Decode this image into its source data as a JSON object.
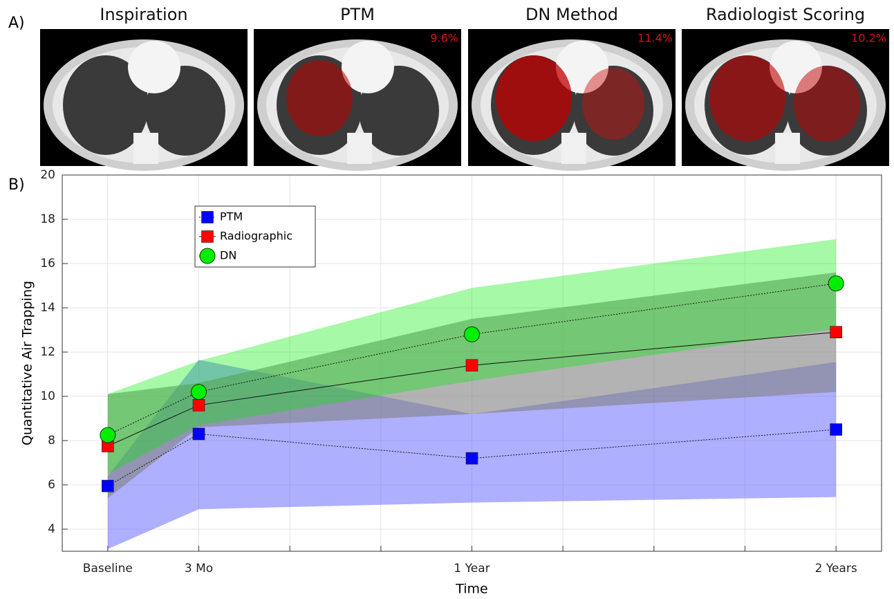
{
  "panel_labels": {
    "a": "A)",
    "b": "B)"
  },
  "images": [
    {
      "title": "Inspiration"
    },
    {
      "title": "PTM",
      "percent": "9.6%"
    },
    {
      "title": "DN Method",
      "percent": "11.4%"
    },
    {
      "title": "Radiologist Scoring",
      "percent": "10.2%"
    }
  ],
  "chart_data": {
    "type": "line",
    "xlabel": "Time",
    "ylabel": "Quantitative Air Trapping",
    "x": [
      0,
      3,
      12,
      24
    ],
    "xlim": [
      -1.5,
      25.5
    ],
    "xticks": [
      {
        "value": 0,
        "label": "Baseline"
      },
      {
        "value": 3,
        "label": "3 Mo"
      },
      {
        "value": 6,
        "label": null
      },
      {
        "value": 9,
        "label": null
      },
      {
        "value": 12,
        "label": "1 Year"
      },
      {
        "value": 15,
        "label": null
      },
      {
        "value": 18,
        "label": null
      },
      {
        "value": 21,
        "label": null
      },
      {
        "value": 24,
        "label": "2 Years"
      }
    ],
    "ylim": [
      3,
      20
    ],
    "yticks": [
      4,
      6,
      8,
      10,
      12,
      14,
      16,
      18,
      20
    ],
    "grid": true,
    "legend": "upper left",
    "series": [
      {
        "name": "PTM",
        "color": "#0000ff",
        "marker": "square",
        "line_style": "dotted",
        "values": [
          5.95,
          8.3,
          7.2,
          8.5
        ],
        "lower": [
          3.1,
          4.9,
          5.2,
          5.45
        ],
        "upper": [
          6.4,
          11.65,
          9.2,
          11.55
        ],
        "band_color": "#4d4dff"
      },
      {
        "name": "Radiographic",
        "color": "#ff0000",
        "marker": "square",
        "line_style": "solid",
        "values": [
          7.75,
          9.6,
          11.4,
          12.9
        ],
        "lower": [
          5.4,
          8.6,
          9.2,
          10.2
        ],
        "upper": [
          10.1,
          10.6,
          13.5,
          15.6
        ],
        "band_color": "#808080"
      },
      {
        "name": "DN",
        "color": "#00ee00",
        "marker": "circle",
        "line_style": "dotted",
        "values": [
          8.25,
          10.2,
          12.8,
          15.1
        ],
        "lower": [
          6.5,
          8.7,
          10.7,
          13.05
        ],
        "upper": [
          10.1,
          11.6,
          14.9,
          17.1
        ],
        "band_color": "#00ee00"
      }
    ]
  }
}
